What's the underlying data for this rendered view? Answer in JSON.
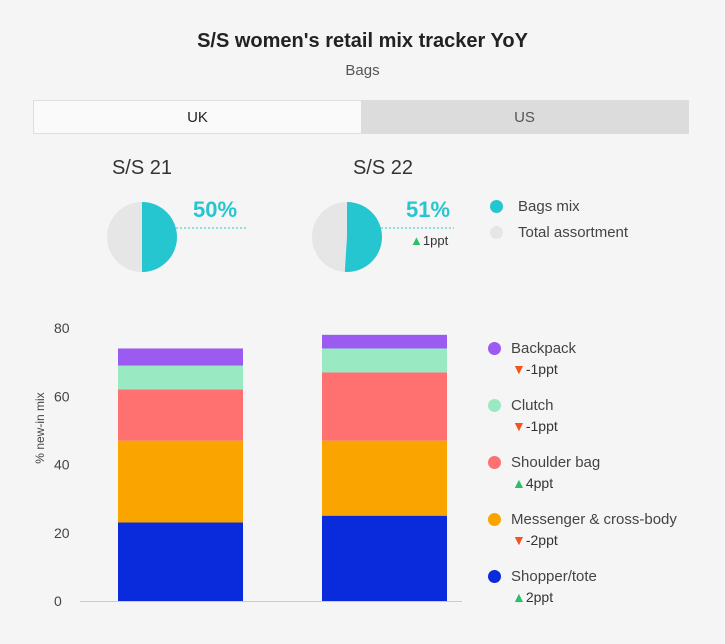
{
  "header": {
    "title": "S/S women's retail mix tracker YoY",
    "subtitle": "Bags"
  },
  "tabs": [
    {
      "label": "UK",
      "active": true
    },
    {
      "label": "US",
      "active": false
    }
  ],
  "colors": {
    "bags_mix": "#26c6d0",
    "total_assortment": "#e6e6e6"
  },
  "pies": [
    {
      "season": "S/S 21",
      "value_label": "50%",
      "value": 50,
      "delta": ""
    },
    {
      "season": "S/S 22",
      "value_label": "51%",
      "value": 51,
      "delta": "1ppt",
      "delta_dir": "up"
    }
  ],
  "pie_legend": [
    {
      "label": "Bags mix",
      "color": "#26c6d0"
    },
    {
      "label": "Total assortment",
      "color": "#e6e6e6"
    }
  ],
  "chart_data": {
    "type": "bar",
    "stacked": true,
    "categories": [
      "S/S 21",
      "S/S 22"
    ],
    "ylabel": "% new-in mix",
    "ylim": [
      0,
      80
    ],
    "yticks": [
      "0",
      "20",
      "40",
      "60",
      "80"
    ],
    "series": [
      {
        "name": "Shopper/tote",
        "color": "#0a2bdc",
        "values": [
          23,
          25
        ],
        "change": "2ppt",
        "dir": "up"
      },
      {
        "name": "Messenger & cross-body",
        "color": "#faa400",
        "values": [
          24,
          22
        ],
        "change": "-2ppt",
        "dir": "down"
      },
      {
        "name": "Shoulder bag",
        "color": "#fe7170",
        "values": [
          15,
          20
        ],
        "change": "4ppt",
        "dir": "up"
      },
      {
        "name": "Clutch",
        "color": "#99e9c3",
        "values": [
          7,
          7
        ],
        "change": "-1ppt",
        "dir": "down"
      },
      {
        "name": "Backpack",
        "color": "#9b5bf0",
        "values": [
          5,
          4
        ],
        "change": "-1ppt",
        "dir": "down"
      }
    ]
  }
}
